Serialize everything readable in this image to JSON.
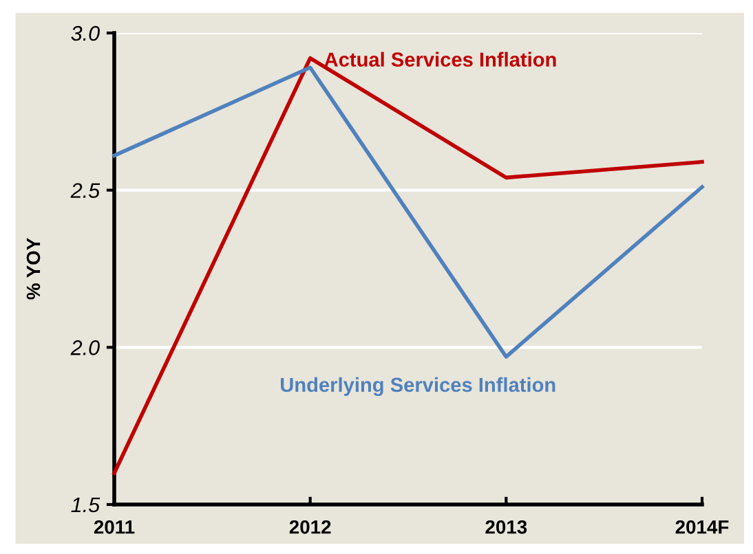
{
  "chart_data": {
    "type": "line",
    "ylabel": "% YOY",
    "categories": [
      "2011",
      "2012",
      "2013",
      "2014F"
    ],
    "series": [
      {
        "name": "Actual Services Inflation",
        "color": "#c00000",
        "values": [
          1.6,
          2.92,
          2.54,
          2.59
        ]
      },
      {
        "name": "Underlying Services Inflation",
        "color": "#4f81bd",
        "values": [
          2.61,
          2.89,
          1.97,
          2.51
        ]
      }
    ],
    "ylim": [
      1.5,
      3.0
    ],
    "yticks": [
      {
        "value": 1.5,
        "label": "1.5"
      },
      {
        "value": 2.0,
        "label": "2.0"
      },
      {
        "value": 2.5,
        "label": "2.5"
      },
      {
        "value": 3.0,
        "label": "3.0"
      }
    ],
    "grid": "y",
    "legend": false,
    "marker": "none",
    "line_style": "solid"
  }
}
